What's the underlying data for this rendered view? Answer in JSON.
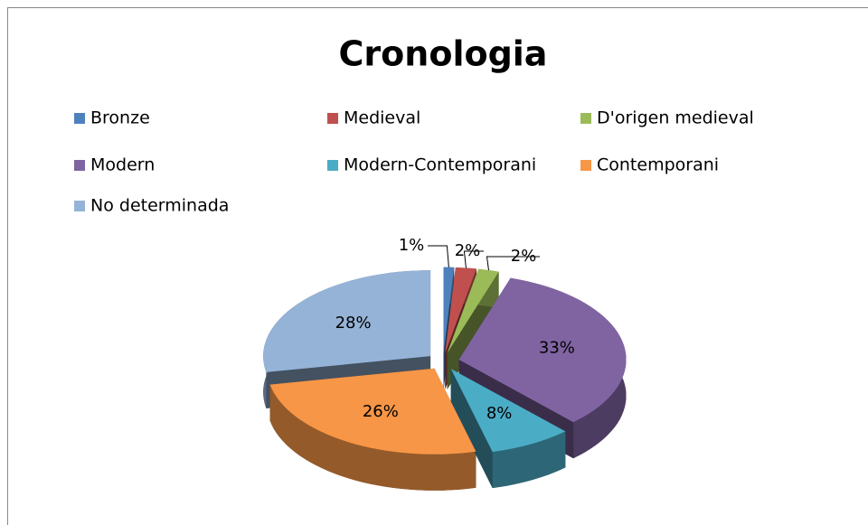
{
  "chart_data": {
    "type": "pie",
    "title": "Cronologia",
    "categories": [
      "Bronze",
      "Medieval",
      "D'origen medieval",
      "Modern",
      "Modern-Contemporani",
      "Contemporani",
      "No determinada"
    ],
    "values": [
      1,
      2,
      2,
      33,
      8,
      26,
      28
    ],
    "value_labels": [
      "1%",
      "2%",
      "2%",
      "33%",
      "8%",
      "26%",
      "28%"
    ],
    "colors": [
      "#4f81bd",
      "#c0504d",
      "#9bbb59",
      "#8064a2",
      "#4bacc6",
      "#f79646",
      "#95b3d7"
    ],
    "legend": "top"
  }
}
